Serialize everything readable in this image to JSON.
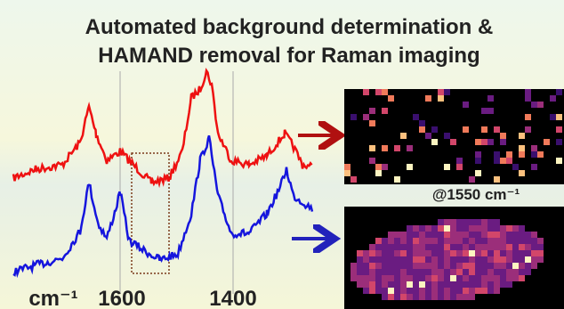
{
  "title": {
    "line1": "Automated background determination &",
    "line2": "HAMAND removal for Raman imaging"
  },
  "axis": {
    "unit": "cm⁻¹",
    "tick1": "1600",
    "tick2": "1400"
  },
  "map_label": "@1550 cm⁻¹"
}
